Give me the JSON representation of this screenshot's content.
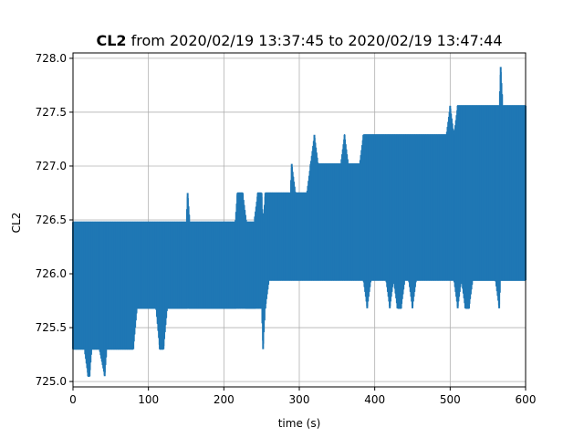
{
  "chart_data": {
    "type": "line",
    "title_bold": "CL2",
    "title_rest": " from 2020/02/19 13:37:45 to 2020/02/19 13:47:44",
    "xlabel": "time (s)",
    "ylabel": "CL2",
    "xlim": [
      0,
      600
    ],
    "ylim": [
      724.95,
      728.05
    ],
    "xticks": [
      0,
      100,
      200,
      300,
      400,
      500,
      600
    ],
    "xtick_labels": [
      "0",
      "100",
      "200",
      "300",
      "400",
      "500",
      "600"
    ],
    "yticks": [
      725.0,
      725.5,
      726.0,
      726.5,
      727.0,
      727.5,
      728.0
    ],
    "ytick_labels": [
      "725.0",
      "725.5",
      "726.0",
      "726.5",
      "727.0",
      "727.5",
      "728.0"
    ],
    "grid": true,
    "series": [
      {
        "color": "#1f77b4",
        "x": [
          0,
          5,
          10,
          15,
          20,
          22,
          25,
          30,
          35,
          42,
          45,
          50,
          55,
          60,
          65,
          70,
          75,
          80,
          85,
          90,
          95,
          100,
          105,
          110,
          115,
          120,
          125,
          130,
          135,
          140,
          145,
          150,
          152,
          155,
          160,
          165,
          170,
          175,
          180,
          185,
          190,
          195,
          200,
          205,
          210,
          215,
          218,
          220,
          225,
          230,
          235,
          240,
          245,
          250,
          252,
          255,
          260,
          265,
          270,
          275,
          280,
          285,
          288,
          290,
          295,
          300,
          305,
          310,
          315,
          320,
          325,
          330,
          335,
          340,
          345,
          350,
          355,
          360,
          365,
          370,
          375,
          380,
          385,
          390,
          395,
          400,
          405,
          410,
          415,
          420,
          425,
          430,
          435,
          440,
          445,
          450,
          455,
          460,
          465,
          470,
          475,
          480,
          485,
          490,
          495,
          500,
          505,
          510,
          515,
          520,
          525,
          530,
          535,
          540,
          545,
          550,
          555,
          560,
          565,
          567,
          570,
          575,
          580,
          585,
          590,
          595,
          600
        ],
        "max": [
          726.48,
          726.48,
          726.48,
          726.48,
          726.48,
          726.48,
          726.48,
          726.48,
          726.48,
          726.48,
          726.48,
          726.48,
          726.48,
          726.48,
          726.48,
          726.48,
          726.48,
          726.48,
          726.48,
          726.48,
          726.48,
          726.48,
          726.48,
          726.48,
          726.48,
          726.48,
          726.48,
          726.48,
          726.48,
          726.48,
          726.48,
          726.48,
          726.75,
          726.48,
          726.48,
          726.48,
          726.48,
          726.48,
          726.48,
          726.48,
          726.48,
          726.48,
          726.48,
          726.48,
          726.48,
          726.48,
          726.75,
          726.75,
          726.75,
          726.48,
          726.48,
          726.48,
          726.75,
          726.75,
          726.48,
          726.75,
          726.75,
          726.75,
          726.75,
          726.75,
          726.75,
          726.75,
          726.75,
          727.02,
          726.75,
          726.75,
          726.75,
          726.75,
          727.02,
          727.29,
          727.02,
          727.02,
          727.02,
          727.02,
          727.02,
          727.02,
          727.02,
          727.29,
          727.02,
          727.02,
          727.02,
          727.02,
          727.29,
          727.29,
          727.29,
          727.29,
          727.29,
          727.29,
          727.29,
          727.29,
          727.29,
          727.29,
          727.29,
          727.29,
          727.29,
          727.29,
          727.29,
          727.29,
          727.29,
          727.29,
          727.29,
          727.29,
          727.29,
          727.29,
          727.29,
          727.56,
          727.29,
          727.56,
          727.56,
          727.56,
          727.56,
          727.56,
          727.56,
          727.56,
          727.56,
          727.56,
          727.56,
          727.56,
          727.56,
          727.92,
          727.56,
          727.56,
          727.56,
          727.56,
          727.56,
          727.56,
          727.56
        ],
        "min": [
          725.3,
          725.3,
          725.3,
          725.3,
          725.05,
          725.05,
          725.3,
          725.3,
          725.3,
          725.05,
          725.3,
          725.3,
          725.3,
          725.3,
          725.3,
          725.3,
          725.3,
          725.3,
          725.68,
          725.68,
          725.68,
          725.68,
          725.68,
          725.68,
          725.3,
          725.3,
          725.68,
          725.68,
          725.68,
          725.68,
          725.68,
          725.68,
          725.68,
          725.68,
          725.68,
          725.68,
          725.68,
          725.68,
          725.68,
          725.68,
          725.68,
          725.68,
          725.68,
          725.68,
          725.68,
          725.68,
          725.68,
          725.68,
          725.68,
          725.68,
          725.68,
          725.68,
          725.68,
          725.68,
          725.3,
          725.68,
          725.94,
          725.94,
          725.94,
          725.94,
          725.94,
          725.94,
          725.94,
          725.94,
          725.94,
          725.94,
          725.94,
          725.94,
          725.94,
          725.94,
          725.94,
          725.94,
          725.94,
          725.94,
          725.94,
          725.94,
          725.94,
          725.94,
          725.94,
          725.94,
          725.94,
          725.94,
          725.94,
          725.68,
          725.94,
          725.94,
          725.94,
          725.94,
          725.94,
          725.68,
          725.94,
          725.68,
          725.68,
          725.94,
          725.94,
          725.68,
          725.94,
          725.94,
          725.94,
          725.94,
          725.94,
          725.94,
          725.94,
          725.94,
          725.94,
          725.94,
          725.94,
          725.68,
          725.94,
          725.68,
          725.68,
          725.94,
          725.94,
          725.94,
          725.94,
          725.94,
          725.94,
          725.94,
          725.68,
          725.94,
          725.94,
          725.94,
          725.94,
          725.94,
          725.94,
          725.94,
          725.94
        ]
      }
    ]
  }
}
